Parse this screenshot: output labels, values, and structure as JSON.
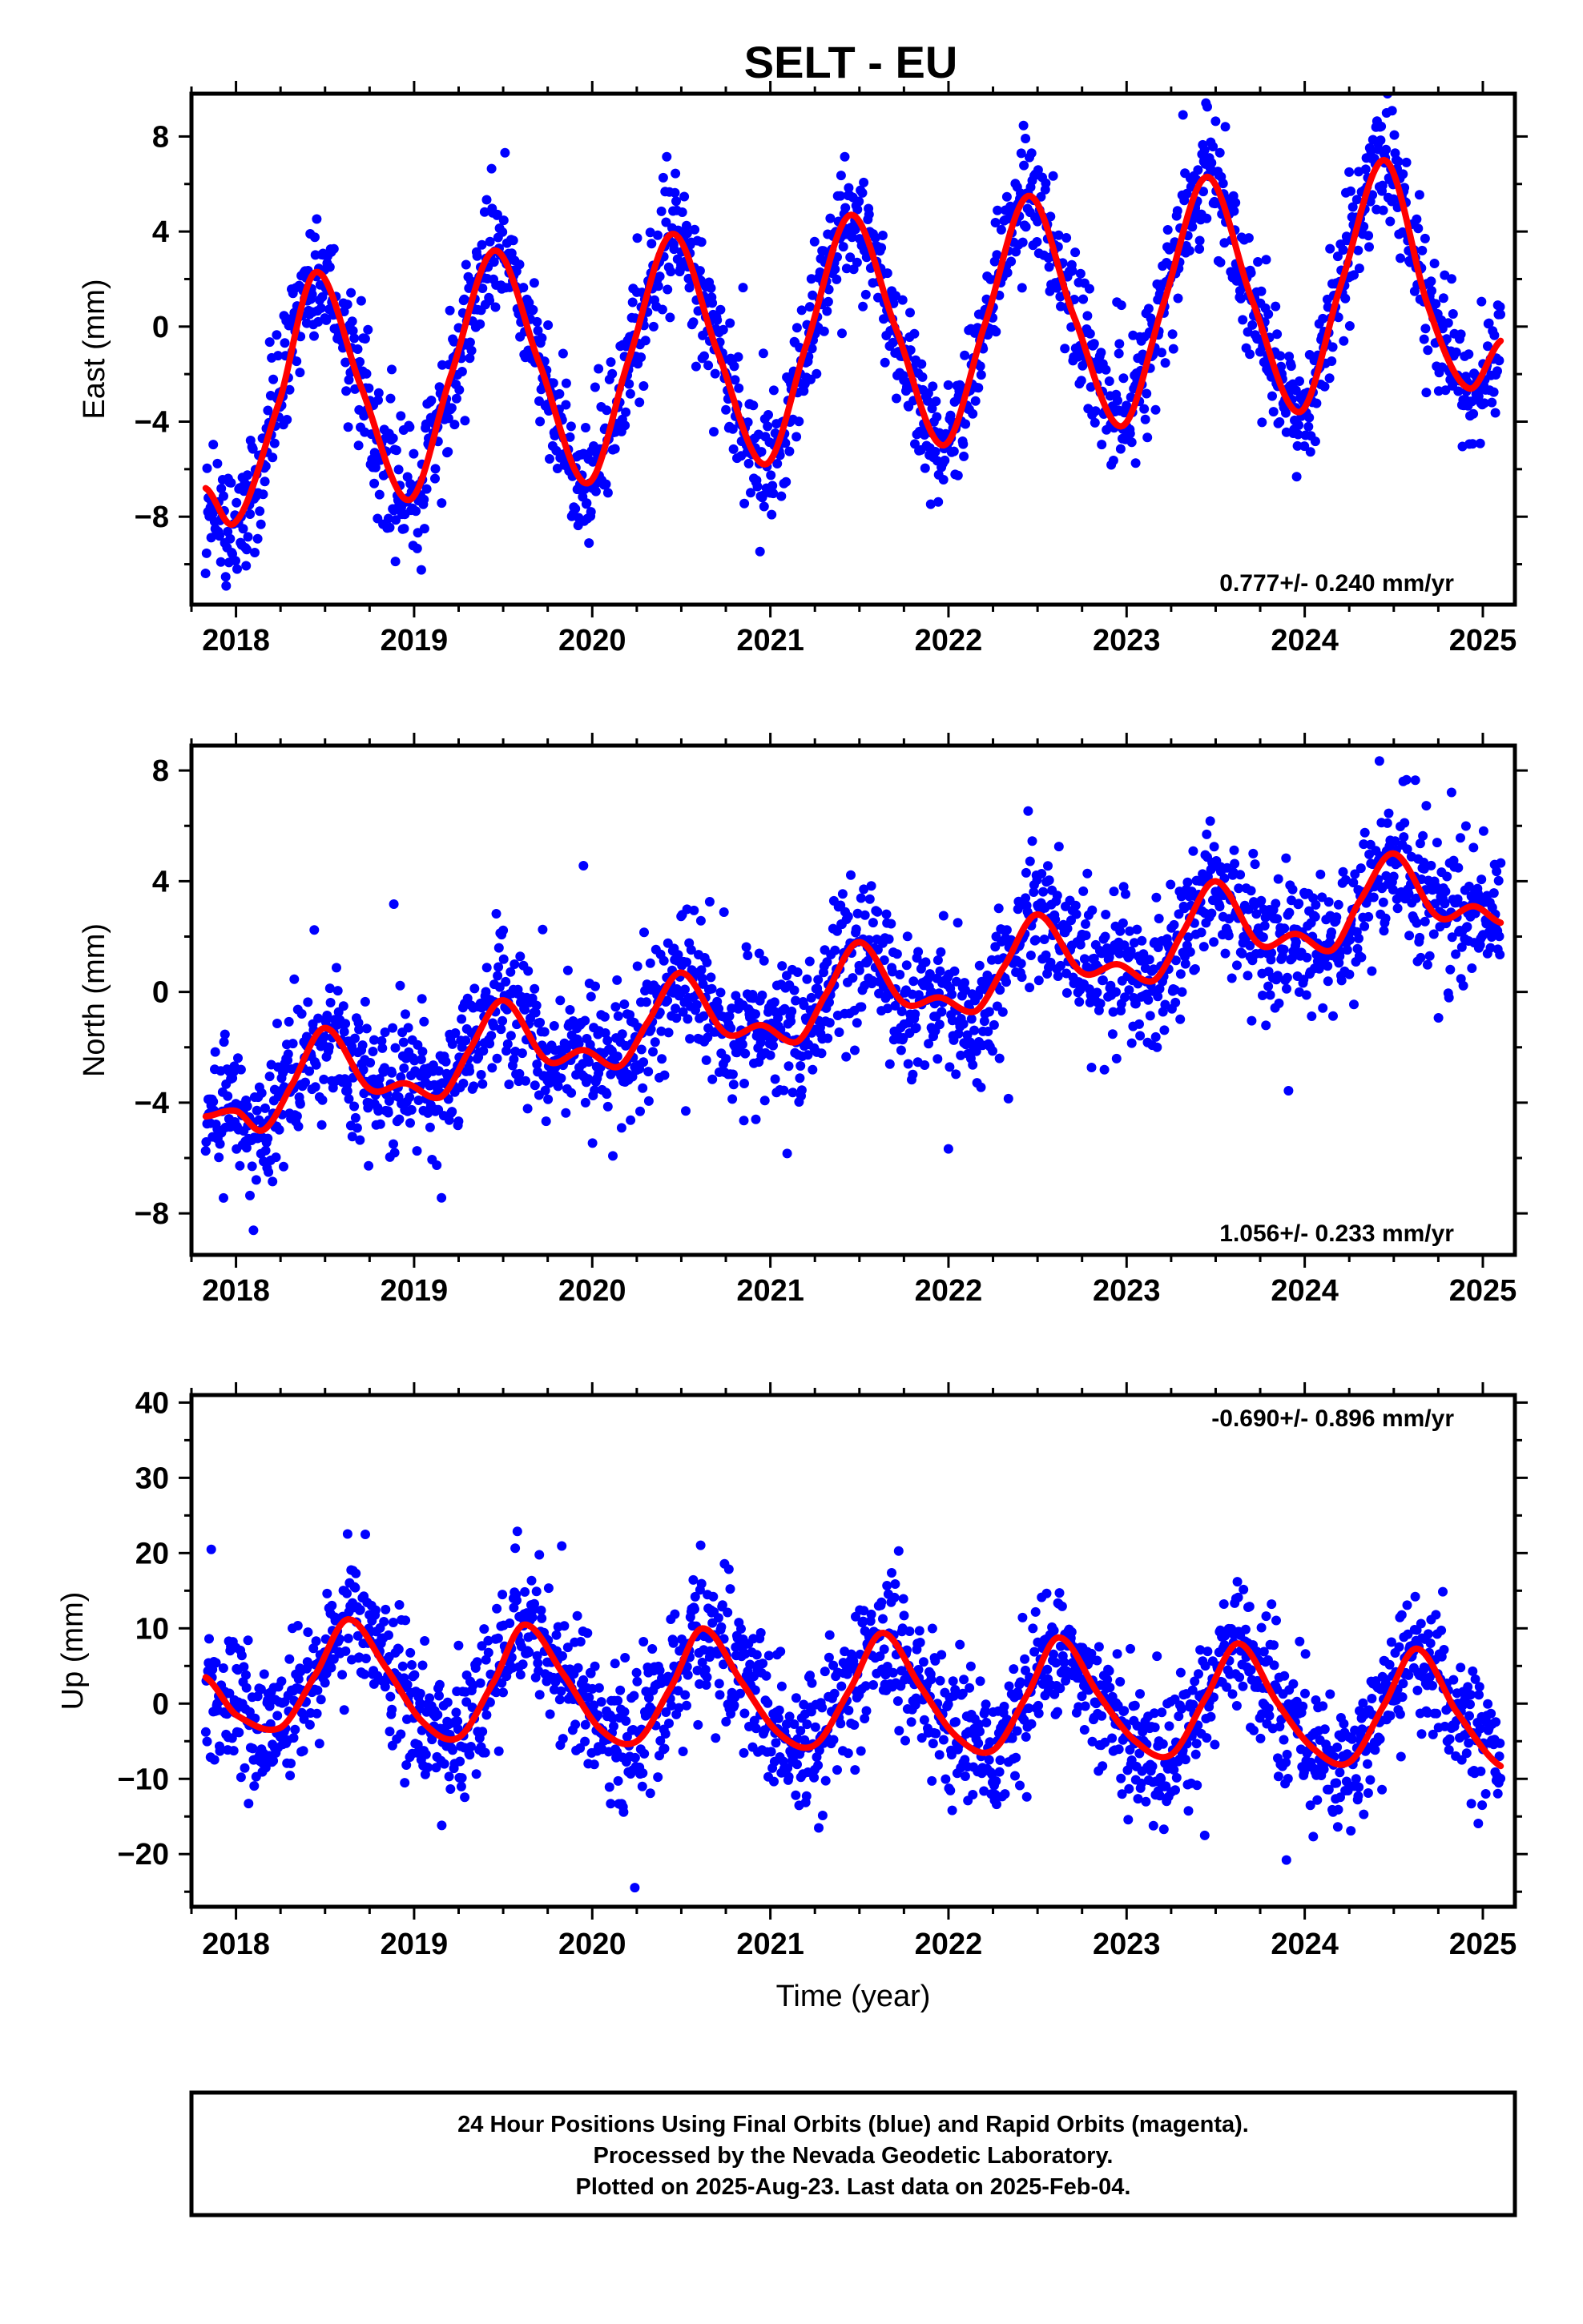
{
  "figure": {
    "title": "SELT - EU",
    "footer": {
      "lines": [
        "24 Hour Positions Using Final Orbits (blue) and Rapid Orbits (magenta).",
        "Processed by the Nevada Geodetic Laboratory.",
        "Plotted on 2025-Aug-23. Last data on 2025-Feb-04."
      ]
    },
    "colors": {
      "final_orbits": "#0000ff",
      "model_fit": "#ff0000",
      "axes": "#000000"
    }
  },
  "chart_data": [
    {
      "type": "scatter",
      "name": "east",
      "ylabel": "East (mm)",
      "xlabel": "",
      "xlim": [
        2017.75,
        2025.18
      ],
      "ylim": [
        -11.7,
        9.8
      ],
      "xticks": [
        2018,
        2019,
        2020,
        2021,
        2022,
        2023,
        2024,
        2025
      ],
      "yticks": [
        -8,
        -4,
        0,
        4,
        8
      ],
      "rate_label": "0.777+/- 0.240 mm/yr",
      "data_start": 2017.83,
      "data_end": 2025.1,
      "trend_mm_per_yr": 0.777,
      "fit_points": [
        [
          2017.83,
          -6.8
        ],
        [
          2018.0,
          -8.2
        ],
        [
          2018.25,
          -3.0
        ],
        [
          2018.45,
          2.3
        ],
        [
          2018.7,
          -2.5
        ],
        [
          2018.97,
          -7.3
        ],
        [
          2019.2,
          -2.2
        ],
        [
          2019.45,
          3.2
        ],
        [
          2019.7,
          -1.5
        ],
        [
          2019.97,
          -6.6
        ],
        [
          2020.2,
          -1.5
        ],
        [
          2020.45,
          3.9
        ],
        [
          2020.7,
          -1.0
        ],
        [
          2020.97,
          -5.8
        ],
        [
          2021.2,
          -0.8
        ],
        [
          2021.45,
          4.7
        ],
        [
          2021.7,
          0.0
        ],
        [
          2021.97,
          -5.0
        ],
        [
          2022.2,
          0.0
        ],
        [
          2022.45,
          5.5
        ],
        [
          2022.7,
          0.5
        ],
        [
          2022.97,
          -4.2
        ],
        [
          2023.2,
          0.8
        ],
        [
          2023.45,
          6.3
        ],
        [
          2023.7,
          1.2
        ],
        [
          2023.97,
          -3.6
        ],
        [
          2024.2,
          1.7
        ],
        [
          2024.45,
          7.0
        ],
        [
          2024.7,
          0.7
        ],
        [
          2024.92,
          -2.6
        ],
        [
          2025.1,
          -0.6
        ]
      ],
      "noise_mm": 1.3
    },
    {
      "type": "scatter",
      "name": "north",
      "ylabel": "North (mm)",
      "xlabel": "",
      "xlim": [
        2017.75,
        2025.18
      ],
      "ylim": [
        -9.5,
        8.9
      ],
      "xticks": [
        2018,
        2019,
        2020,
        2021,
        2022,
        2023,
        2024,
        2025
      ],
      "yticks": [
        -8,
        -4,
        0,
        4,
        8
      ],
      "rate_label": "1.056+/- 0.233 mm/yr",
      "data_start": 2017.83,
      "data_end": 2025.1,
      "trend_mm_per_yr": 1.056,
      "fit_points": [
        [
          2017.83,
          -4.5
        ],
        [
          2018.0,
          -4.3
        ],
        [
          2018.15,
          -5.0
        ],
        [
          2018.3,
          -3.5
        ],
        [
          2018.5,
          -1.3
        ],
        [
          2018.75,
          -3.5
        ],
        [
          2018.95,
          -3.3
        ],
        [
          2019.15,
          -3.8
        ],
        [
          2019.3,
          -2.2
        ],
        [
          2019.5,
          -0.3
        ],
        [
          2019.75,
          -2.5
        ],
        [
          2019.95,
          -2.1
        ],
        [
          2020.15,
          -2.7
        ],
        [
          2020.3,
          -1.2
        ],
        [
          2020.5,
          0.7
        ],
        [
          2020.75,
          -1.5
        ],
        [
          2020.95,
          -1.2
        ],
        [
          2021.15,
          -1.8
        ],
        [
          2021.3,
          -0.2
        ],
        [
          2021.5,
          1.8
        ],
        [
          2021.75,
          -0.4
        ],
        [
          2021.95,
          -0.2
        ],
        [
          2022.15,
          -0.7
        ],
        [
          2022.3,
          0.8
        ],
        [
          2022.5,
          2.8
        ],
        [
          2022.75,
          0.7
        ],
        [
          2022.95,
          1.0
        ],
        [
          2023.15,
          0.4
        ],
        [
          2023.3,
          2.0
        ],
        [
          2023.5,
          4.0
        ],
        [
          2023.75,
          1.7
        ],
        [
          2023.95,
          2.1
        ],
        [
          2024.15,
          1.5
        ],
        [
          2024.3,
          3.2
        ],
        [
          2024.5,
          5.0
        ],
        [
          2024.75,
          2.7
        ],
        [
          2024.95,
          3.1
        ],
        [
          2025.1,
          2.5
        ]
      ],
      "noise_mm": 1.3
    },
    {
      "type": "scatter",
      "name": "up",
      "ylabel": "Up (mm)",
      "xlabel": "Time (year)",
      "xlim": [
        2017.75,
        2025.18
      ],
      "ylim": [
        -27,
        41
      ],
      "xticks": [
        2018,
        2019,
        2020,
        2021,
        2022,
        2023,
        2024,
        2025
      ],
      "yticks": [
        -20,
        -10,
        0,
        10,
        20,
        30,
        40
      ],
      "rate_label": "-0.690+/- 0.896 mm/yr",
      "data_start": 2017.83,
      "data_end": 2025.1,
      "trend_mm_per_yr": -0.69,
      "fit_points": [
        [
          2017.83,
          3.5
        ],
        [
          2018.0,
          -1.5
        ],
        [
          2018.25,
          -3.2
        ],
        [
          2018.45,
          4.0
        ],
        [
          2018.63,
          11.2
        ],
        [
          2018.85,
          4.5
        ],
        [
          2019.05,
          -2.5
        ],
        [
          2019.25,
          -4.5
        ],
        [
          2019.45,
          3.0
        ],
        [
          2019.62,
          10.5
        ],
        [
          2019.85,
          3.5
        ],
        [
          2020.05,
          -3.5
        ],
        [
          2020.25,
          -5.0
        ],
        [
          2020.45,
          2.5
        ],
        [
          2020.62,
          10.0
        ],
        [
          2020.85,
          2.5
        ],
        [
          2021.05,
          -4.0
        ],
        [
          2021.25,
          -5.5
        ],
        [
          2021.45,
          2.0
        ],
        [
          2021.63,
          9.4
        ],
        [
          2021.85,
          2.0
        ],
        [
          2022.05,
          -4.5
        ],
        [
          2022.25,
          -6.2
        ],
        [
          2022.45,
          1.5
        ],
        [
          2022.62,
          8.8
        ],
        [
          2022.85,
          1.0
        ],
        [
          2023.05,
          -5.0
        ],
        [
          2023.25,
          -6.8
        ],
        [
          2023.45,
          1.0
        ],
        [
          2023.63,
          8.0
        ],
        [
          2023.85,
          0.0
        ],
        [
          2024.05,
          -6.0
        ],
        [
          2024.25,
          -7.8
        ],
        [
          2024.45,
          0.0
        ],
        [
          2024.63,
          7.3
        ],
        [
          2024.85,
          -1.0
        ],
        [
          2025.1,
          -8.3
        ]
      ],
      "noise_mm": 4.5
    }
  ]
}
